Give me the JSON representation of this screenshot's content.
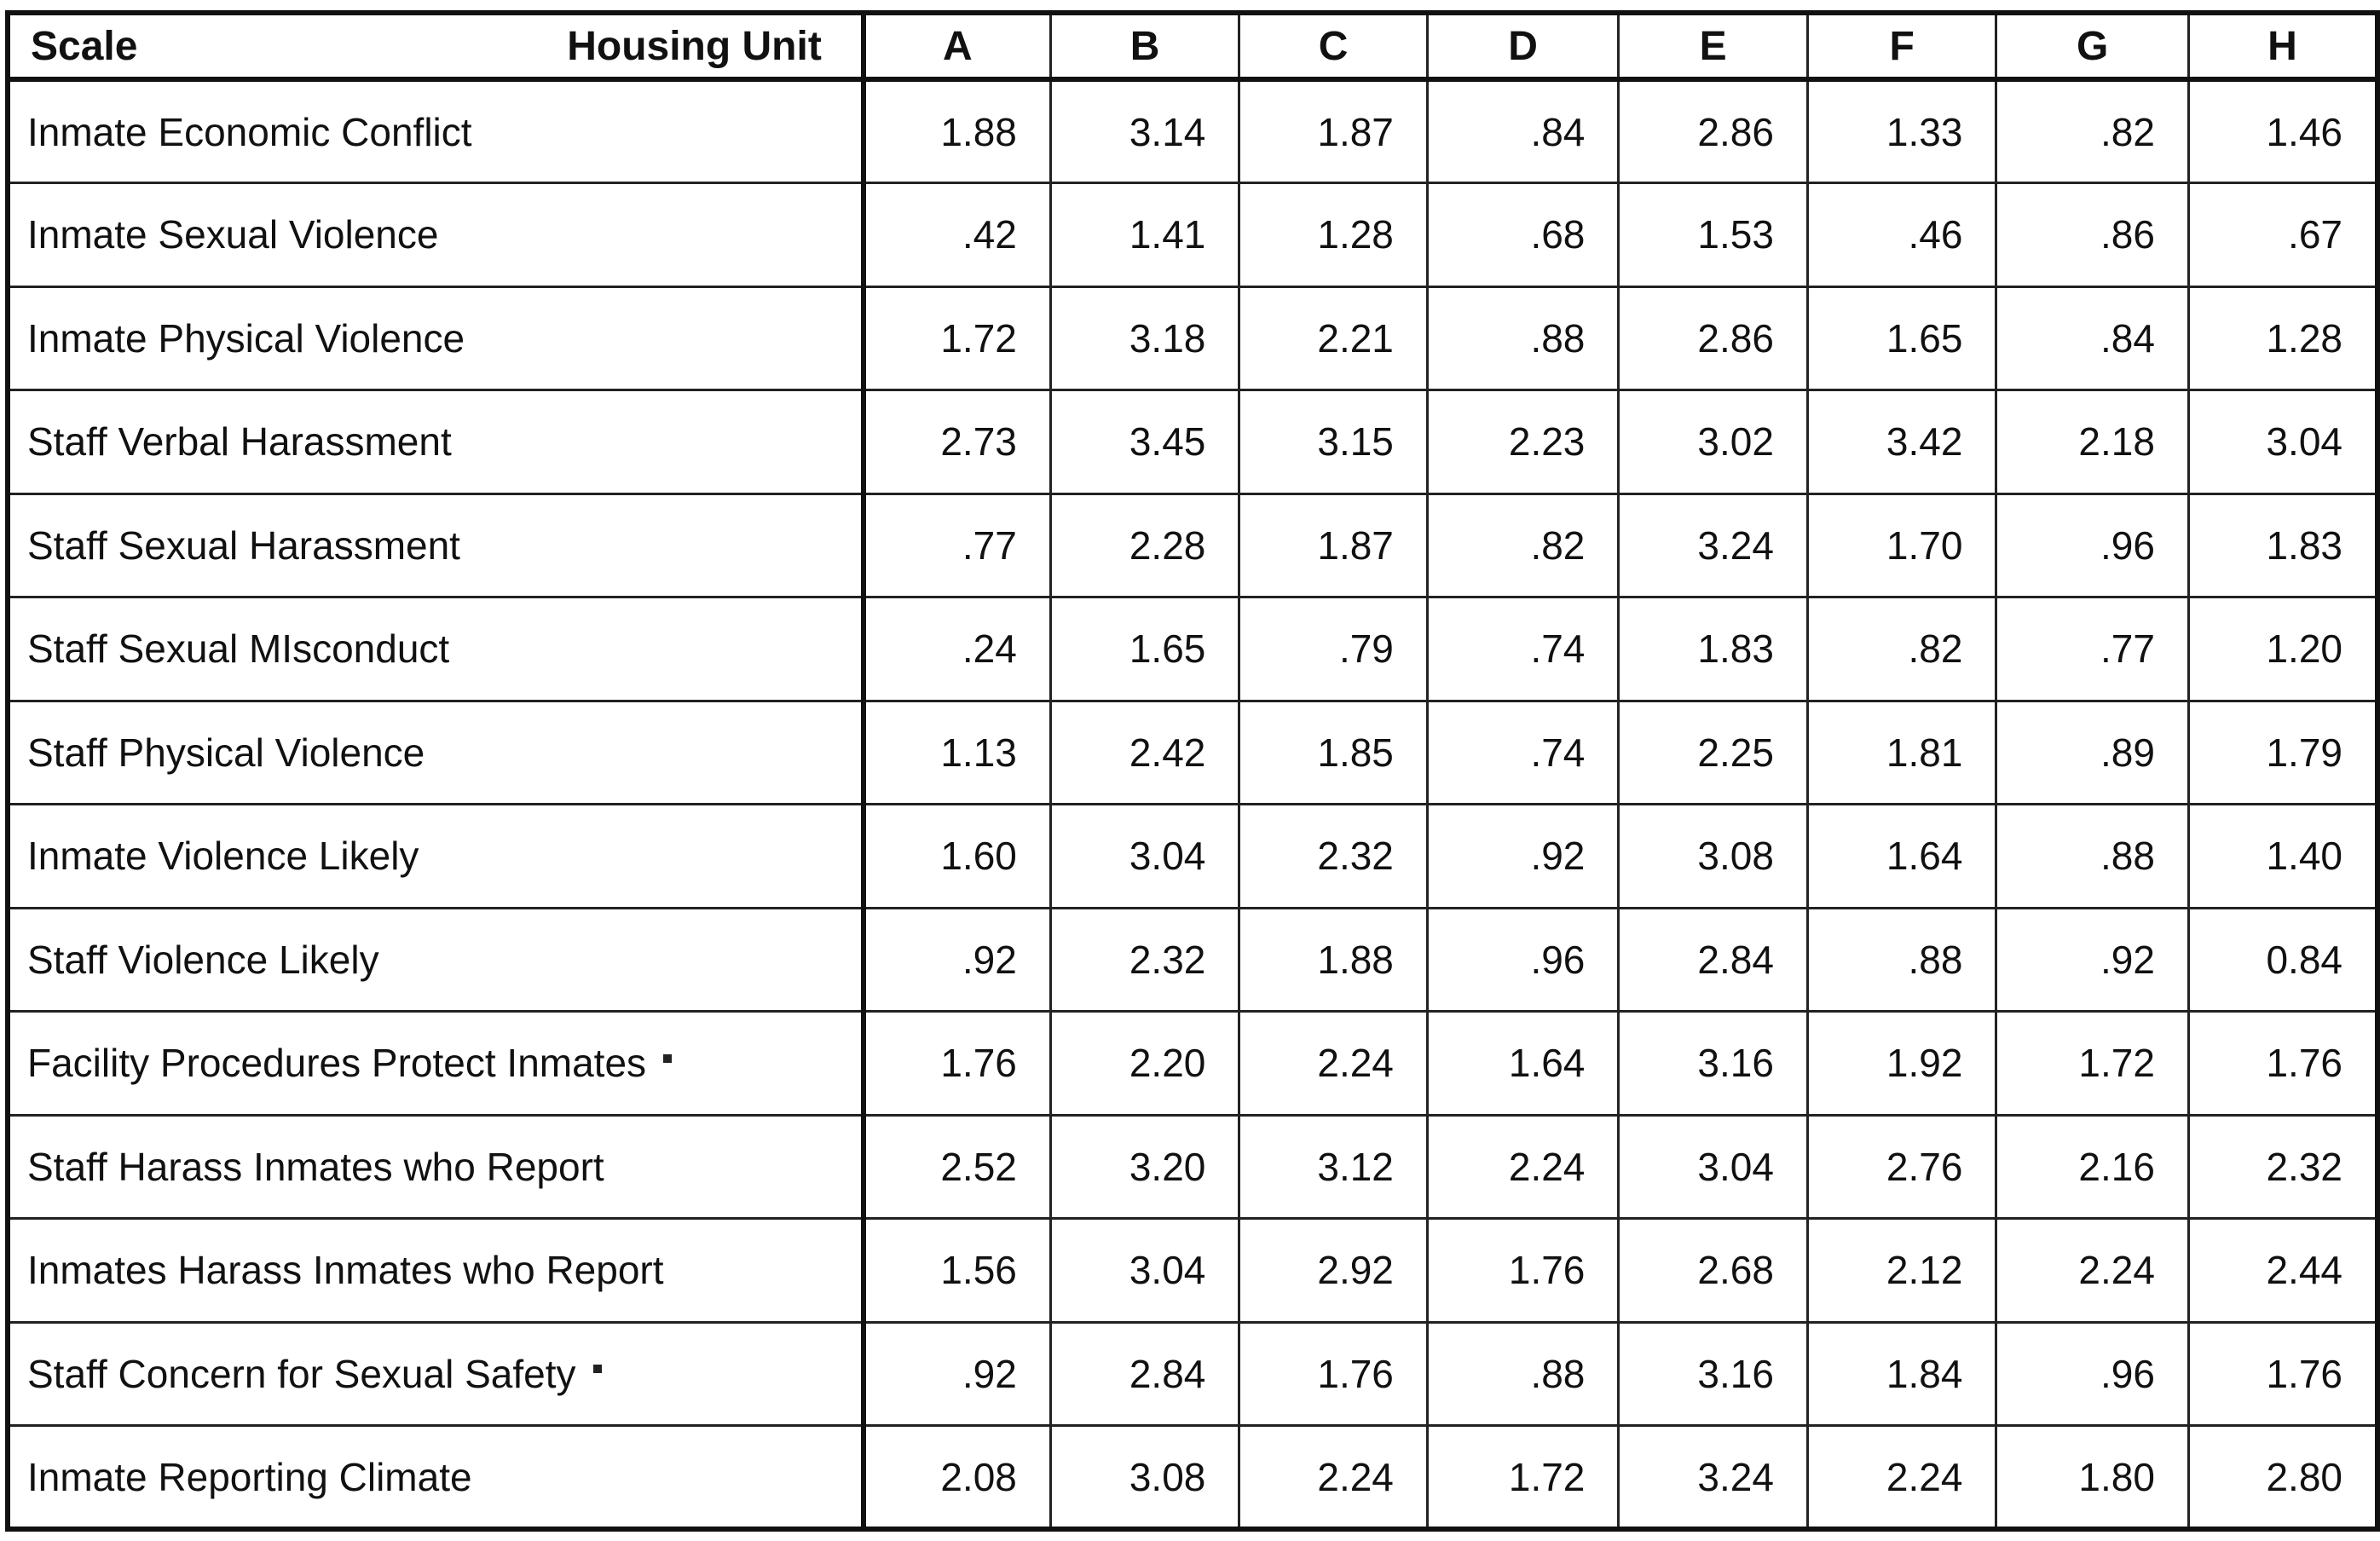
{
  "header": {
    "scale_label": "Scale",
    "housing_label": "Housing Unit"
  },
  "chart_data": {
    "type": "table",
    "columns": [
      "A",
      "B",
      "C",
      "D",
      "E",
      "F",
      "G",
      "H"
    ],
    "rows": [
      {
        "label": "Inmate Economic Conflict",
        "marked": false,
        "values": [
          "1.88",
          "3.14",
          "1.87",
          ".84",
          "2.86",
          "1.33",
          ".82",
          "1.46"
        ]
      },
      {
        "label": "Inmate Sexual Violence",
        "marked": false,
        "values": [
          ".42",
          "1.41",
          "1.28",
          ".68",
          "1.53",
          ".46",
          ".86",
          ".67"
        ]
      },
      {
        "label": "Inmate Physical Violence",
        "marked": false,
        "values": [
          "1.72",
          "3.18",
          "2.21",
          ".88",
          "2.86",
          "1.65",
          ".84",
          "1.28"
        ]
      },
      {
        "label": "Staff Verbal Harassment",
        "marked": false,
        "values": [
          "2.73",
          "3.45",
          "3.15",
          "2.23",
          "3.02",
          "3.42",
          "2.18",
          "3.04"
        ]
      },
      {
        "label": "Staff Sexual Harassment",
        "marked": false,
        "values": [
          ".77",
          "2.28",
          "1.87",
          ".82",
          "3.24",
          "1.70",
          ".96",
          "1.83"
        ]
      },
      {
        "label": "Staff Sexual MIsconduct",
        "marked": false,
        "values": [
          ".24",
          "1.65",
          ".79",
          ".74",
          "1.83",
          ".82",
          ".77",
          "1.20"
        ]
      },
      {
        "label": "Staff Physical Violence",
        "marked": false,
        "values": [
          "1.13",
          "2.42",
          "1.85",
          ".74",
          "2.25",
          "1.81",
          ".89",
          "1.79"
        ]
      },
      {
        "label": "Inmate Violence Likely",
        "marked": false,
        "values": [
          "1.60",
          "3.04",
          "2.32",
          ".92",
          "3.08",
          "1.64",
          ".88",
          "1.40"
        ]
      },
      {
        "label": "Staff Violence Likely",
        "marked": false,
        "values": [
          ".92",
          "2.32",
          "1.88",
          ".96",
          "2.84",
          ".88",
          ".92",
          "0.84"
        ]
      },
      {
        "label": "Facility Procedures Protect Inmates",
        "marked": true,
        "values": [
          "1.76",
          "2.20",
          "2.24",
          "1.64",
          "3.16",
          "1.92",
          "1.72",
          "1.76"
        ]
      },
      {
        "label": "Staff Harass Inmates who Report",
        "marked": false,
        "values": [
          "2.52",
          "3.20",
          "3.12",
          "2.24",
          "3.04",
          "2.76",
          "2.16",
          "2.32"
        ]
      },
      {
        "label": "Inmates Harass Inmates who Report",
        "marked": false,
        "values": [
          "1.56",
          "3.04",
          "2.92",
          "1.76",
          "2.68",
          "2.12",
          "2.24",
          "2.44"
        ]
      },
      {
        "label": "Staff Concern for Sexual Safety",
        "marked": true,
        "values": [
          ".92",
          "2.84",
          "1.76",
          ".88",
          "3.16",
          "1.84",
          ".96",
          "1.76"
        ]
      },
      {
        "label": "Inmate Reporting Climate",
        "marked": false,
        "values": [
          "2.08",
          "3.08",
          "2.24",
          "1.72",
          "3.24",
          "2.24",
          "1.80",
          "2.80"
        ]
      }
    ]
  }
}
